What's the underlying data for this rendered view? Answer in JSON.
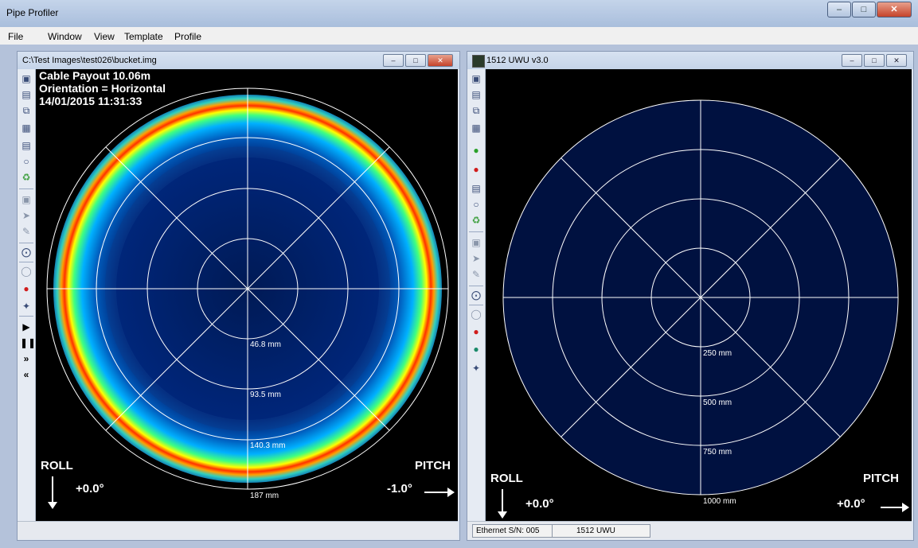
{
  "app": {
    "title": "Pipe Profiler"
  },
  "menu": [
    "File",
    "Window",
    "View",
    "Template",
    "Profile"
  ],
  "left_window": {
    "title": "C:\\Test Images\\test026\\bucket.img",
    "overlay": {
      "line1": "Cable Payout 10.06m",
      "line2": "Orientation = Horizontal",
      "line3": "14/01/2015 11:31:33"
    },
    "ring_labels": [
      "46.8 mm",
      "93.5 mm",
      "140.3 mm",
      "187 mm"
    ],
    "roll_label": "ROLL",
    "roll_value": "+0.0°",
    "pitch_label": "PITCH",
    "pitch_value": "-1.0°"
  },
  "right_window": {
    "title": "1512 UWU v3.0",
    "ring_labels": [
      "250 mm",
      "500 mm",
      "750 mm",
      "1000 mm"
    ],
    "roll_label": "ROLL",
    "roll_value": "+0.0°",
    "pitch_label": "PITCH",
    "pitch_value": "+0.0°",
    "status": {
      "serial": "Ethernet S/N: 005",
      "device": "1512 UWU"
    }
  },
  "colors": {
    "polar_bg": "#001133",
    "grid": "#ffffff",
    "ring_hot": "#ff1a00"
  }
}
